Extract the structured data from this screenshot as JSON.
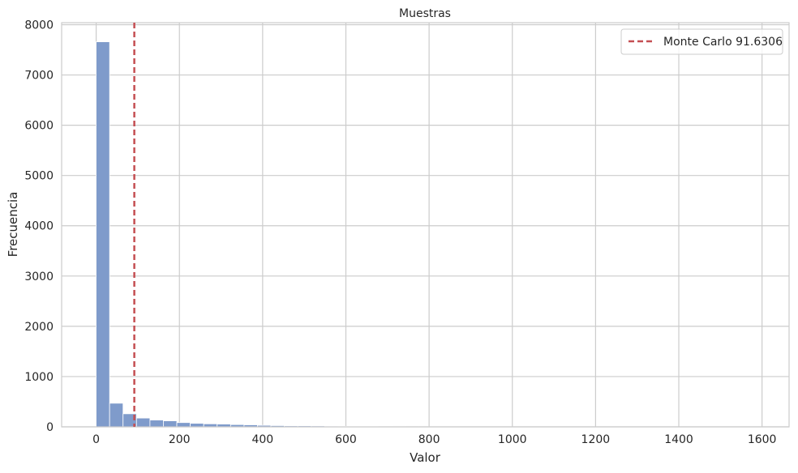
{
  "chart_data": {
    "type": "bar",
    "title": "Muestras",
    "xlabel": "Valor",
    "ylabel": "Frecuencia",
    "xlim": [
      -83,
      1665
    ],
    "ylim": [
      0,
      8040
    ],
    "xticks": [
      0,
      200,
      400,
      600,
      800,
      1000,
      1200,
      1400,
      1600
    ],
    "yticks": [
      0,
      1000,
      2000,
      3000,
      4000,
      5000,
      6000,
      7000,
      8000
    ],
    "grid": true,
    "bins": {
      "start": 0,
      "width": 32.3,
      "counts": [
        7660,
        470,
        260,
        175,
        135,
        120,
        85,
        70,
        60,
        55,
        45,
        40,
        30,
        25,
        20,
        20,
        18,
        15,
        10,
        8,
        10,
        6,
        5,
        4,
        3,
        3,
        3,
        2,
        2,
        2,
        1,
        1,
        1,
        1,
        1,
        0,
        0,
        0,
        0,
        0,
        0,
        0,
        0,
        0,
        1,
        1,
        0,
        0,
        0,
        1
      ]
    },
    "vline": {
      "x": 91.6306,
      "label": "Monte Carlo 91.6306",
      "style": "dashed"
    },
    "legend_position": "top-right",
    "colors": {
      "bars": "#7f9bcb",
      "bar_edge": "#ffffff",
      "vline": "#c44e52",
      "grid": "#cccccc",
      "frame": "#cccccc"
    }
  }
}
